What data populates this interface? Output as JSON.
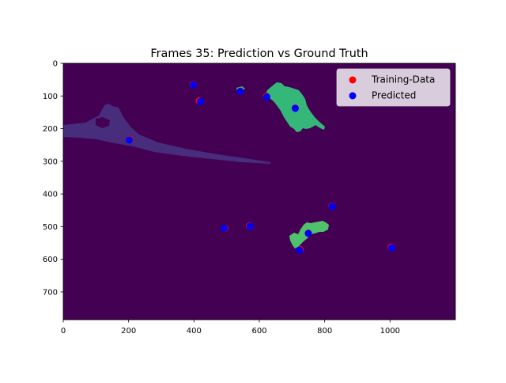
{
  "chart_data": {
    "type": "scatter",
    "title": "Frames 35: Prediction vs Ground Truth",
    "xlabel": "",
    "ylabel": "",
    "xlim": [
      0,
      1200
    ],
    "ylim": [
      785,
      0
    ],
    "xticks": [
      0,
      200,
      400,
      600,
      800,
      1000
    ],
    "yticks": [
      0,
      100,
      200,
      300,
      400,
      500,
      600,
      700
    ],
    "grid": false,
    "legend_position": "upper right",
    "background_image": "segmentation mask (viridis): dark purple background, one faint purple elongated region on the left, two green islands",
    "colors": {
      "background": "#440154",
      "faint_region": "#472d7b",
      "green_island": "#35b779",
      "green_island_2": "#4ec36b",
      "training": "#ff0000",
      "predicted": "#0000ff"
    },
    "series": [
      {
        "name": "Training-Data",
        "color": "#ff0000",
        "points": [
          [
            397,
            65
          ],
          [
            416,
            115
          ],
          [
            542,
            85
          ],
          [
            622,
            101
          ],
          [
            710,
            137
          ],
          [
            203,
            233
          ],
          [
            822,
            437
          ],
          [
            570,
            498
          ],
          [
            495,
            505
          ],
          [
            750,
            520
          ],
          [
            725,
            570
          ],
          [
            1003,
            563
          ]
        ]
      },
      {
        "name": "Predicted",
        "color": "#0000ff",
        "points": [
          [
            398,
            66
          ],
          [
            420,
            117
          ],
          [
            542,
            86
          ],
          [
            623,
            103
          ],
          [
            710,
            138
          ],
          [
            202,
            235
          ],
          [
            823,
            438
          ],
          [
            572,
            499
          ],
          [
            493,
            505
          ],
          [
            750,
            521
          ],
          [
            723,
            572
          ],
          [
            1005,
            565
          ]
        ]
      }
    ]
  }
}
